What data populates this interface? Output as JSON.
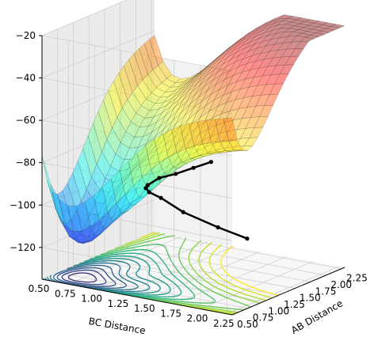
{
  "chart_data": {
    "type": "surface3d",
    "title": "",
    "xlabel": "AB Distance",
    "ylabel": "BC Distance",
    "zlabel": "",
    "x_ticks": [
      "0.50",
      "0.75",
      "1.00",
      "1.25",
      "1.50",
      "1.75",
      "2.00",
      "2.25"
    ],
    "y_ticks": [
      "0.50",
      "0.75",
      "1.00",
      "1.25",
      "1.50",
      "1.75",
      "2.00",
      "2.25"
    ],
    "z_ticks": [
      "−20",
      "−40",
      "−60",
      "−80",
      "−100",
      "−120"
    ],
    "xlim": [
      0.5,
      2.3
    ],
    "ylim": [
      0.5,
      2.3
    ],
    "zlim": [
      -135,
      -20
    ],
    "colormap_surface": "jet",
    "colormap_contour": "viridis",
    "grid": true,
    "trajectory": {
      "color": "#000000",
      "description_points_x": [
        0.74,
        0.78,
        0.9,
        1.05,
        1.2,
        1.4,
        1.6,
        1.9,
        2.2,
        2.5,
        2.8
      ],
      "description_points_y": [
        2.3,
        2.0,
        1.6,
        1.3,
        1.1,
        0.95,
        0.85,
        0.78,
        0.76,
        0.75,
        0.74
      ],
      "description_points_z": [
        -102,
        -100,
        -98,
        -96,
        -97,
        -99,
        -101,
        -102,
        -104,
        -105,
        -106
      ]
    }
  }
}
